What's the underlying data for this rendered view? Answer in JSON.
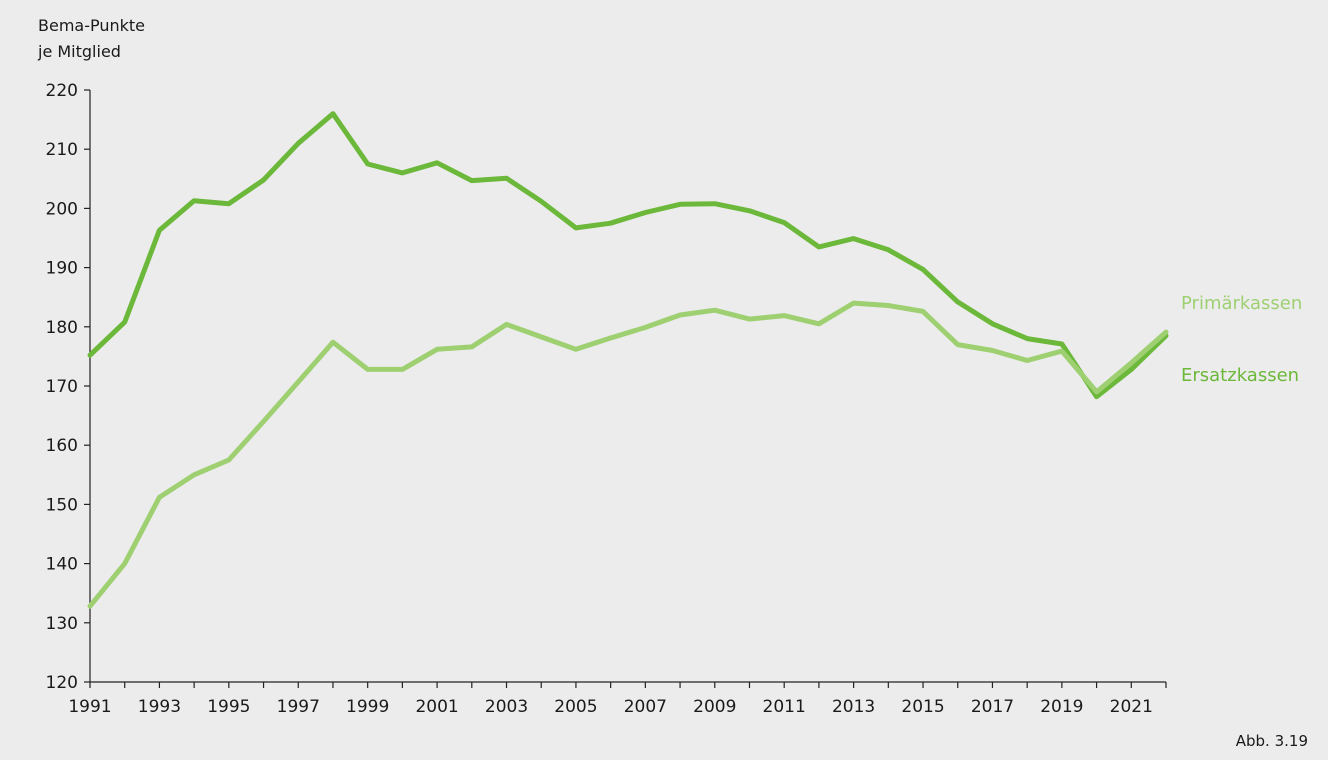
{
  "chart_data": {
    "type": "line",
    "ylabel_lines": [
      "Bema-Punkte",
      "je Mitglied"
    ],
    "ylim": [
      120,
      220
    ],
    "yticks": [
      120,
      130,
      140,
      150,
      160,
      170,
      180,
      190,
      200,
      210,
      220
    ],
    "x": [
      1991,
      1992,
      1993,
      1994,
      1995,
      1996,
      1997,
      1998,
      1999,
      2000,
      2001,
      2002,
      2003,
      2004,
      2005,
      2006,
      2007,
      2008,
      2009,
      2010,
      2011,
      2012,
      2013,
      2014,
      2015,
      2016,
      2017,
      2018,
      2019,
      2020,
      2021,
      2022
    ],
    "xlim": [
      1991,
      2022
    ],
    "xtick_labels": [
      1991,
      1993,
      1995,
      1997,
      1999,
      2001,
      2003,
      2005,
      2007,
      2009,
      2011,
      2013,
      2015,
      2017,
      2019,
      2021
    ],
    "grid": false,
    "legend": "direct labels right",
    "series": [
      {
        "name": "Ersatzkassen",
        "color": "#6cb83a",
        "values": [
          175.2,
          180.8,
          196.3,
          201.3,
          200.8,
          204.8,
          211.0,
          216.0,
          207.5,
          206.0,
          207.7,
          204.7,
          205.1,
          201.2,
          196.7,
          197.5,
          199.3,
          200.7,
          200.8,
          199.6,
          197.6,
          193.5,
          194.9,
          193.0,
          189.7,
          184.2,
          180.5,
          178.0,
          177.1,
          168.2,
          172.8,
          178.5
        ]
      },
      {
        "name": "Primärkassen",
        "color": "#9ed072",
        "values": [
          132.8,
          140.0,
          151.2,
          155.0,
          157.5,
          164.0,
          170.7,
          177.4,
          172.8,
          172.8,
          176.2,
          176.6,
          180.4,
          178.3,
          176.2,
          178.1,
          179.9,
          182.0,
          182.8,
          181.3,
          181.9,
          180.5,
          184.0,
          183.6,
          182.6,
          177.0,
          176.0,
          174.3,
          175.9,
          169.0,
          173.9,
          179.1
        ]
      }
    ]
  },
  "labels": {
    "primar": "Primärkassen",
    "ersatz": "Ersatzkassen",
    "caption": "Abb. 3.19"
  }
}
